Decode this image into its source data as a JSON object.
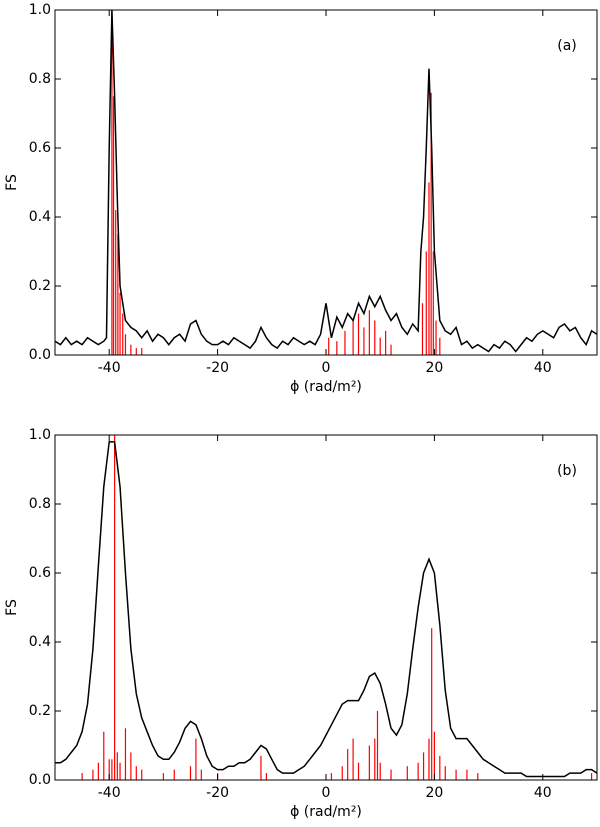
{
  "chart_data": [
    {
      "type": "line",
      "annotation": "(a)",
      "xlabel": "ϕ (rad/m²)",
      "ylabel": "FS",
      "xlim": [
        -50,
        50
      ],
      "ylim": [
        0,
        1
      ],
      "xticks": [
        -40,
        -20,
        0,
        20,
        40
      ],
      "yticks": [
        {
          "value": 0,
          "label": "0.0"
        },
        {
          "value": 0.2,
          "label": "0.2"
        },
        {
          "value": 0.4,
          "label": "0.4"
        },
        {
          "value": 0.6,
          "label": "0.6"
        },
        {
          "value": 0.8,
          "label": "0.8"
        },
        {
          "value": 1,
          "label": "1.0"
        }
      ],
      "series": [
        {
          "type": "bar",
          "color": "#ff0000",
          "x": [
            -39.5,
            -39.2,
            -38.8,
            -38.4,
            -38,
            -37.5,
            -37,
            -36,
            -35,
            -34,
            0.5,
            2,
            3.5,
            5,
            6,
            7,
            8,
            9,
            10,
            11,
            12,
            17.8,
            18.5,
            19,
            19.4,
            19.8,
            20.3,
            21
          ],
          "values": [
            1.0,
            0.75,
            0.42,
            0.35,
            0.18,
            0.12,
            0.06,
            0.03,
            0.02,
            0.02,
            0.05,
            0.04,
            0.07,
            0.1,
            0.12,
            0.08,
            0.13,
            0.1,
            0.05,
            0.07,
            0.03,
            0.15,
            0.3,
            0.5,
            0.76,
            0.3,
            0.1,
            0.05
          ]
        },
        {
          "type": "line",
          "color": "#000000",
          "x": [
            -50,
            -49,
            -48,
            -47,
            -46,
            -45,
            -44,
            -43,
            -42,
            -41,
            -40.5,
            -40,
            -39.5,
            -39,
            -38.5,
            -38,
            -37,
            -36,
            -35,
            -34,
            -33,
            -32,
            -31,
            -30,
            -29,
            -28,
            -27,
            -26,
            -25,
            -24,
            -23,
            -22,
            -21,
            -20,
            -19,
            -18,
            -17,
            -16,
            -15,
            -14,
            -13,
            -12,
            -11,
            -10,
            -9,
            -8,
            -7,
            -6,
            -5,
            -4,
            -3,
            -2,
            -1,
            0,
            1,
            2,
            3,
            4,
            5,
            6,
            7,
            8,
            9,
            10,
            11,
            12,
            13,
            14,
            15,
            16,
            17,
            17.5,
            18,
            18.5,
            19,
            19.5,
            20,
            21,
            22,
            23,
            24,
            25,
            26,
            27,
            28,
            29,
            30,
            31,
            32,
            33,
            34,
            35,
            36,
            37,
            38,
            39,
            40,
            41,
            42,
            43,
            44,
            45,
            46,
            47,
            48,
            49,
            50
          ],
          "values": [
            0.04,
            0.03,
            0.05,
            0.03,
            0.04,
            0.03,
            0.05,
            0.04,
            0.03,
            0.04,
            0.05,
            0.6,
            1.0,
            0.75,
            0.45,
            0.2,
            0.1,
            0.08,
            0.07,
            0.05,
            0.07,
            0.04,
            0.06,
            0.05,
            0.03,
            0.05,
            0.06,
            0.04,
            0.09,
            0.1,
            0.06,
            0.04,
            0.03,
            0.03,
            0.04,
            0.03,
            0.05,
            0.04,
            0.03,
            0.02,
            0.04,
            0.08,
            0.05,
            0.03,
            0.02,
            0.04,
            0.03,
            0.05,
            0.04,
            0.03,
            0.04,
            0.03,
            0.06,
            0.15,
            0.05,
            0.11,
            0.08,
            0.12,
            0.1,
            0.15,
            0.12,
            0.17,
            0.14,
            0.17,
            0.13,
            0.1,
            0.12,
            0.08,
            0.06,
            0.09,
            0.07,
            0.3,
            0.4,
            0.6,
            0.83,
            0.6,
            0.3,
            0.1,
            0.07,
            0.06,
            0.08,
            0.03,
            0.04,
            0.02,
            0.03,
            0.02,
            0.01,
            0.03,
            0.02,
            0.04,
            0.03,
            0.01,
            0.03,
            0.05,
            0.04,
            0.06,
            0.07,
            0.06,
            0.05,
            0.08,
            0.09,
            0.07,
            0.08,
            0.05,
            0.03,
            0.07,
            0.06
          ]
        }
      ]
    },
    {
      "type": "line",
      "annotation": "(b)",
      "xlabel": "ϕ (rad/m²)",
      "ylabel": "FS",
      "xlim": [
        -50,
        50
      ],
      "ylim": [
        0,
        1
      ],
      "xticks": [
        -40,
        -20,
        0,
        20,
        40
      ],
      "yticks": [
        {
          "value": 0,
          "label": "0.0"
        },
        {
          "value": 0.2,
          "label": "0.2"
        },
        {
          "value": 0.4,
          "label": "0.4"
        },
        {
          "value": 0.6,
          "label": "0.6"
        },
        {
          "value": 0.8,
          "label": "0.8"
        },
        {
          "value": 1,
          "label": "1.0"
        }
      ],
      "series": [
        {
          "type": "bar",
          "color": "#ff0000",
          "x": [
            -45,
            -43,
            -42,
            -41,
            -40,
            -39.5,
            -39,
            -38.5,
            -38,
            -37,
            -36,
            -35,
            -34,
            -30,
            -28,
            -25,
            -24,
            -23,
            -20,
            -12,
            -11,
            1,
            3,
            4,
            5,
            6,
            8,
            9,
            9.5,
            10,
            12,
            15,
            17,
            18,
            19,
            19.5,
            20,
            21,
            22,
            24,
            26,
            28,
            49
          ],
          "values": [
            0.02,
            0.03,
            0.05,
            0.14,
            0.06,
            0.06,
            1.0,
            0.08,
            0.05,
            0.15,
            0.08,
            0.04,
            0.03,
            0.02,
            0.03,
            0.04,
            0.12,
            0.03,
            0.02,
            0.07,
            0.02,
            0.02,
            0.04,
            0.09,
            0.12,
            0.05,
            0.1,
            0.12,
            0.2,
            0.05,
            0.03,
            0.04,
            0.05,
            0.08,
            0.12,
            0.44,
            0.14,
            0.07,
            0.04,
            0.03,
            0.03,
            0.02,
            0.02
          ]
        },
        {
          "type": "line",
          "color": "#000000",
          "x": [
            -50,
            -49,
            -48,
            -47,
            -46,
            -45,
            -44,
            -43,
            -42,
            -41,
            -40,
            -39,
            -38,
            -37,
            -36,
            -35,
            -34,
            -33,
            -32,
            -31,
            -30,
            -29,
            -28,
            -27,
            -26,
            -25,
            -24,
            -23,
            -22,
            -21,
            -20,
            -19,
            -18,
            -17,
            -16,
            -15,
            -14,
            -13,
            -12,
            -11,
            -10,
            -9,
            -8,
            -7,
            -6,
            -5,
            -4,
            -3,
            -2,
            -1,
            0,
            1,
            2,
            3,
            4,
            5,
            6,
            7,
            8,
            9,
            10,
            11,
            12,
            13,
            14,
            15,
            16,
            17,
            18,
            19,
            20,
            21,
            22,
            23,
            24,
            25,
            26,
            27,
            28,
            29,
            30,
            31,
            32,
            33,
            34,
            35,
            36,
            37,
            38,
            39,
            40,
            41,
            42,
            43,
            44,
            45,
            46,
            47,
            48,
            49,
            50
          ],
          "values": [
            0.05,
            0.05,
            0.06,
            0.08,
            0.1,
            0.14,
            0.22,
            0.38,
            0.62,
            0.85,
            0.98,
            0.98,
            0.85,
            0.6,
            0.38,
            0.25,
            0.18,
            0.14,
            0.1,
            0.07,
            0.06,
            0.06,
            0.08,
            0.11,
            0.15,
            0.17,
            0.16,
            0.12,
            0.07,
            0.04,
            0.03,
            0.03,
            0.04,
            0.04,
            0.05,
            0.05,
            0.06,
            0.08,
            0.1,
            0.09,
            0.06,
            0.03,
            0.02,
            0.02,
            0.02,
            0.03,
            0.04,
            0.06,
            0.08,
            0.1,
            0.13,
            0.16,
            0.19,
            0.22,
            0.23,
            0.23,
            0.23,
            0.26,
            0.3,
            0.31,
            0.28,
            0.22,
            0.15,
            0.13,
            0.16,
            0.25,
            0.38,
            0.5,
            0.6,
            0.64,
            0.6,
            0.45,
            0.26,
            0.15,
            0.12,
            0.12,
            0.12,
            0.1,
            0.08,
            0.06,
            0.05,
            0.04,
            0.03,
            0.02,
            0.02,
            0.02,
            0.02,
            0.01,
            0.01,
            0.01,
            0.01,
            0.01,
            0.01,
            0.01,
            0.01,
            0.02,
            0.02,
            0.02,
            0.03,
            0.03,
            0.02
          ]
        }
      ]
    }
  ]
}
